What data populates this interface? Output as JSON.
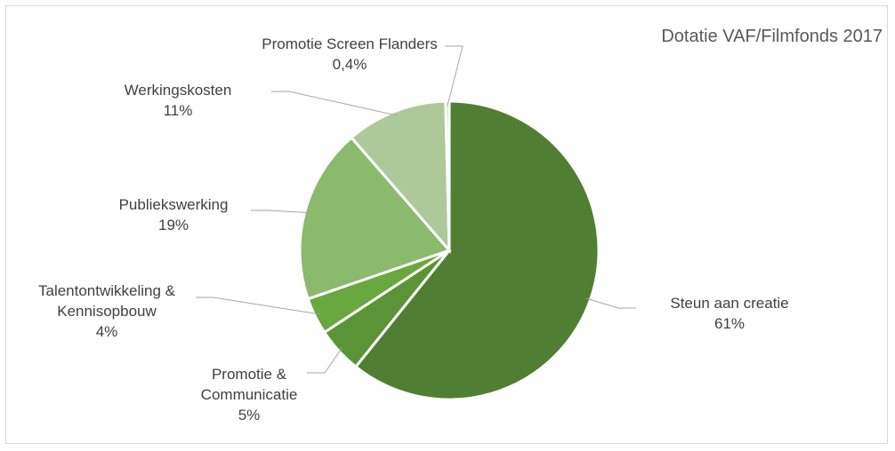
{
  "chart_data": {
    "type": "pie",
    "title": "Dotatie VAF/Filmfonds 2017",
    "categories": [
      "Steun aan creatie",
      "Promotie & Communicatie",
      "Talentontwikkeling & Kennisopbouw",
      "Publiekswerking",
      "Werkingskosten",
      "Promotie Screen Flanders"
    ],
    "values": [
      61,
      5,
      4,
      19,
      11,
      0.4
    ],
    "value_labels": [
      "61%",
      "5%",
      "4%",
      "19%",
      "11%",
      "0,4%"
    ],
    "colors": [
      "#507e32",
      "#5b9436",
      "#69a73f",
      "#8aba6e",
      "#adc99a",
      "#c9dcb9"
    ]
  }
}
